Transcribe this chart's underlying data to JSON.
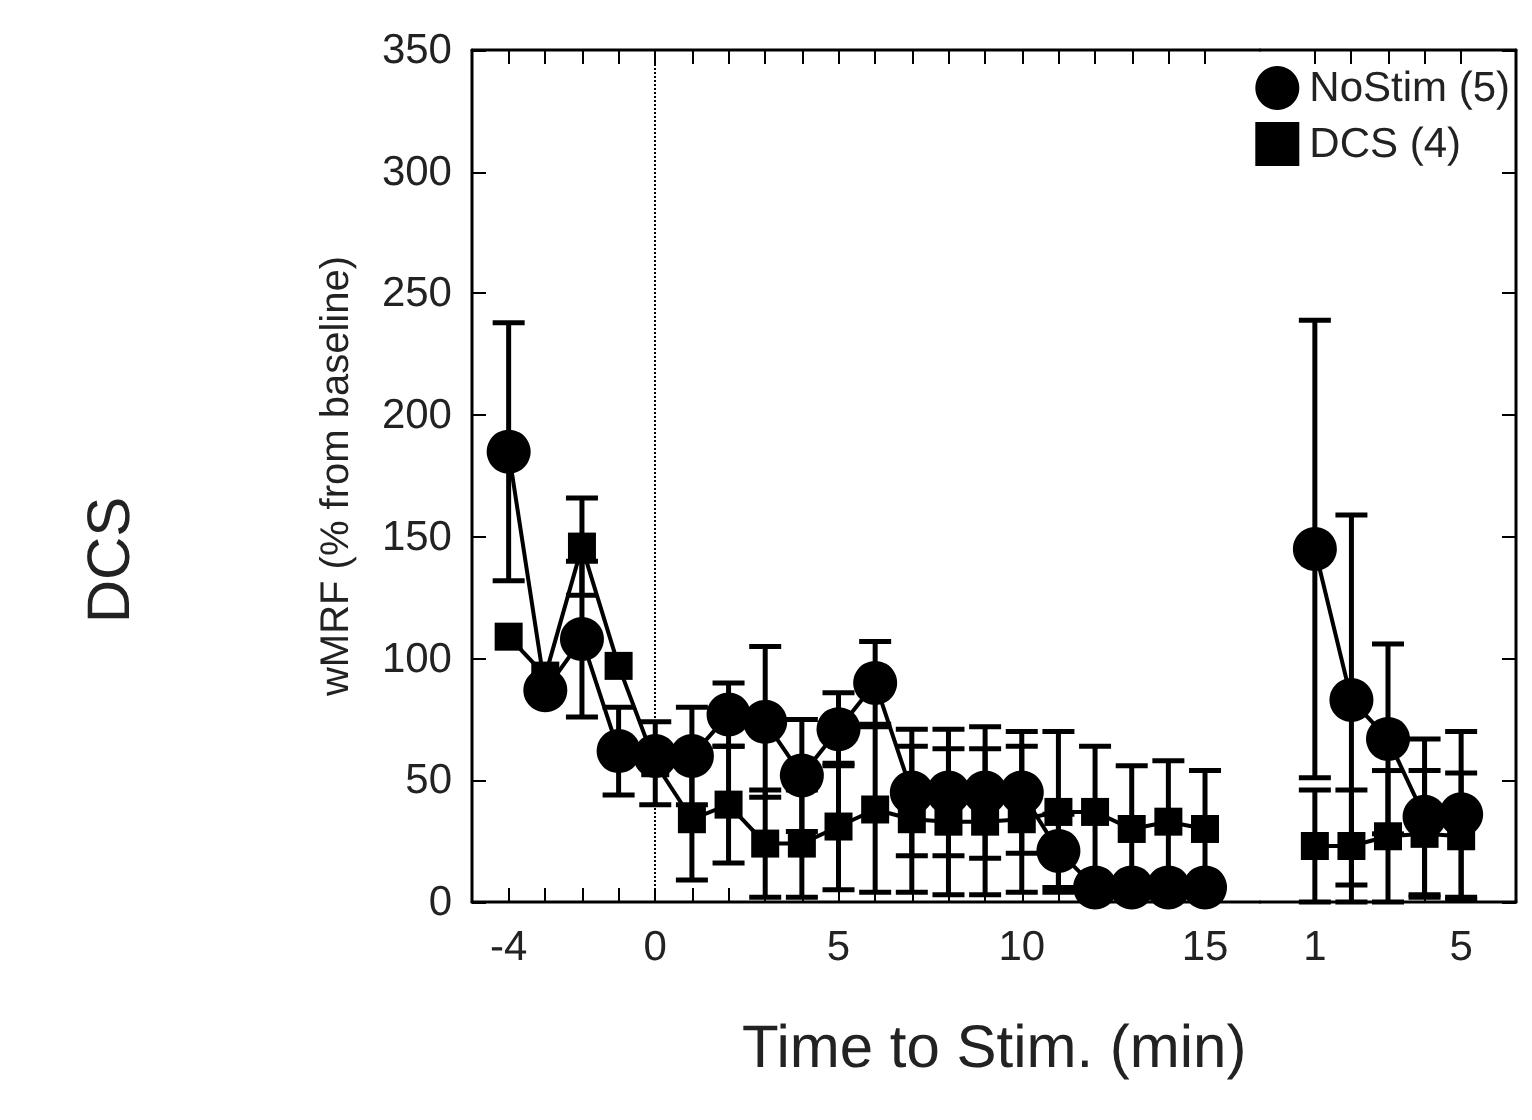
{
  "chart_data": [
    {
      "type": "line",
      "xlabel": "Time to Stim. (min)",
      "ylabel": "wMRF (% from baseline)",
      "annotations": [
        "DCS"
      ],
      "xlim": [
        -5,
        16.5
      ],
      "ylim": [
        0,
        350
      ],
      "xticks": [
        -4,
        {
          "value": -3,
          "label": null
        },
        {
          "value": -2,
          "label": null
        },
        {
          "value": -1,
          "label": null
        },
        0,
        {
          "value": 1,
          "label": null
        },
        {
          "value": 2,
          "label": null
        },
        {
          "value": 3,
          "label": null
        },
        {
          "value": 4,
          "label": null
        },
        5,
        {
          "value": 6,
          "label": null
        },
        {
          "value": 7,
          "label": null
        },
        {
          "value": 8,
          "label": null
        },
        {
          "value": 9,
          "label": null
        },
        10,
        {
          "value": 11,
          "label": null
        },
        {
          "value": 12,
          "label": null
        },
        {
          "value": 13,
          "label": null
        },
        {
          "value": 14,
          "label": null
        },
        15
      ],
      "yticks": [
        0,
        50,
        100,
        150,
        200,
        250,
        300,
        350
      ],
      "x": [
        -4,
        -3,
        -2,
        -1,
        0,
        1,
        2,
        3,
        4,
        5,
        6,
        7,
        8,
        9,
        10,
        11,
        12,
        13,
        14,
        15
      ],
      "series": [
        {
          "color": "#000000",
          "marker": "circle",
          "values": [
            185,
            87,
            108,
            62,
            60,
            60,
            77,
            74,
            52,
            71,
            90,
            45,
            45,
            45,
            45,
            21,
            6,
            6,
            6,
            6
          ],
          "errors": [
            53,
            null,
            32,
            18,
            null,
            20,
            13,
            31,
            23,
            15,
            17,
            26,
            26,
            27,
            25,
            15,
            null,
            null,
            null,
            null
          ]
        },
        {
          "color": "#000000",
          "marker": "square",
          "values": [
            109,
            93,
            146,
            97,
            57,
            34,
            40,
            24,
            24,
            31,
            38,
            34,
            33,
            33,
            34,
            37,
            37,
            30,
            33,
            30
          ],
          "errors": [
            null,
            null,
            20,
            null,
            17,
            25,
            24,
            22,
            22,
            26,
            34,
            30,
            30,
            30,
            30,
            33,
            27,
            26,
            25,
            24
          ]
        }
      ],
      "ref_lines": [
        {
          "axis": "x",
          "value": 0,
          "color": "#000000",
          "line_style": "dotted"
        }
      ],
      "grid": false,
      "line_style": "solid"
    },
    {
      "type": "line",
      "xlim": [
        -0.5,
        6.5
      ],
      "ylim": [
        0,
        350
      ],
      "xticks": [
        1,
        {
          "value": 2,
          "label": null
        },
        {
          "value": 3,
          "label": null
        },
        {
          "value": 4,
          "label": null
        },
        5
      ],
      "yticks": [
        0,
        50,
        100,
        150,
        200,
        250,
        300,
        350
      ],
      "x": [
        1,
        2,
        3,
        4,
        5
      ],
      "series": [
        {
          "name": "NoStim (5)",
          "color": "#000000",
          "marker": "circle",
          "values": [
            145,
            83,
            67,
            35,
            36
          ],
          "errors": [
            94,
            76,
            39,
            32,
            34
          ]
        },
        {
          "name": "DCS (4)",
          "color": "#000000",
          "marker": "square",
          "values": [
            23,
            23,
            27,
            28,
            27
          ],
          "errors": [
            23,
            23,
            27,
            26,
            26
          ]
        }
      ],
      "grid": false,
      "legend": "top right",
      "line_style": "solid",
      "tick_labels": "x"
    }
  ]
}
